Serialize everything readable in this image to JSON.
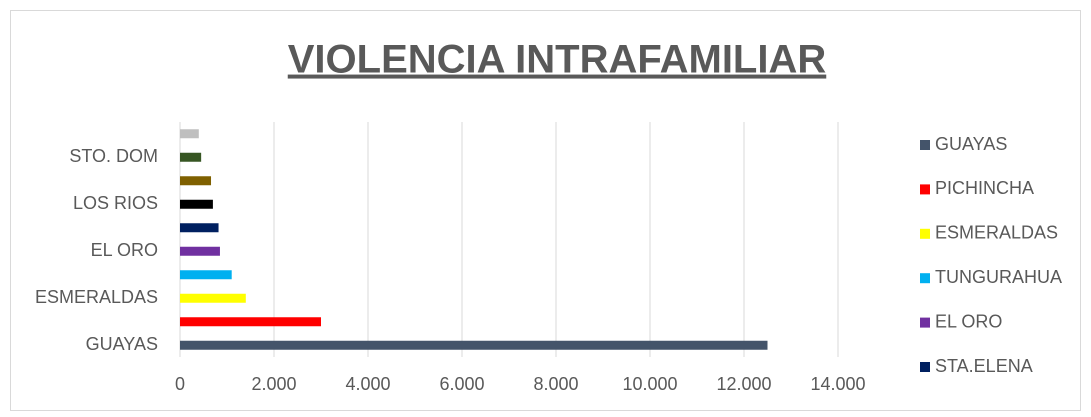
{
  "chart_data": {
    "type": "bar",
    "orientation": "horizontal",
    "title": "VIOLENCIA INTRAFAMILIAR",
    "categories": [
      "GUAYAS",
      null,
      "ESMERALDAS",
      null,
      "EL ORO",
      null,
      "LOS RIOS",
      null,
      "STO. DOM",
      null
    ],
    "values": [
      12500,
      3000,
      1400,
      1100,
      850,
      820,
      700,
      660,
      450,
      400
    ],
    "colors": [
      "#44546a",
      "#ff0000",
      "#ffff00",
      "#00b0f0",
      "#7030a0",
      "#002060",
      "#000000",
      "#7f6000",
      "#375623",
      "#bfbfbf"
    ],
    "xlim": [
      0,
      14000
    ],
    "xticks": [
      0,
      {
        "value": 2000,
        "label": "2.000"
      },
      {
        "value": 4000,
        "label": "4.000"
      },
      {
        "value": 6000,
        "label": "6.000"
      },
      {
        "value": 8000,
        "label": "8.000"
      },
      {
        "value": 10000,
        "label": "10.000"
      },
      {
        "value": 12000,
        "label": "12.000"
      },
      {
        "value": 14000,
        "label": "14.000"
      }
    ],
    "grid": true,
    "legend_position": "right",
    "legend": [
      {
        "name": "GUAYAS",
        "color": "#44546a"
      },
      {
        "name": "PICHINCHA",
        "color": "#ff0000"
      },
      {
        "name": "ESMERALDAS",
        "color": "#ffff00"
      },
      {
        "name": "TUNGURAHUA",
        "color": "#00b0f0"
      },
      {
        "name": "EL ORO",
        "color": "#7030a0"
      },
      {
        "name": "STA.ELENA",
        "color": "#002060"
      }
    ]
  }
}
